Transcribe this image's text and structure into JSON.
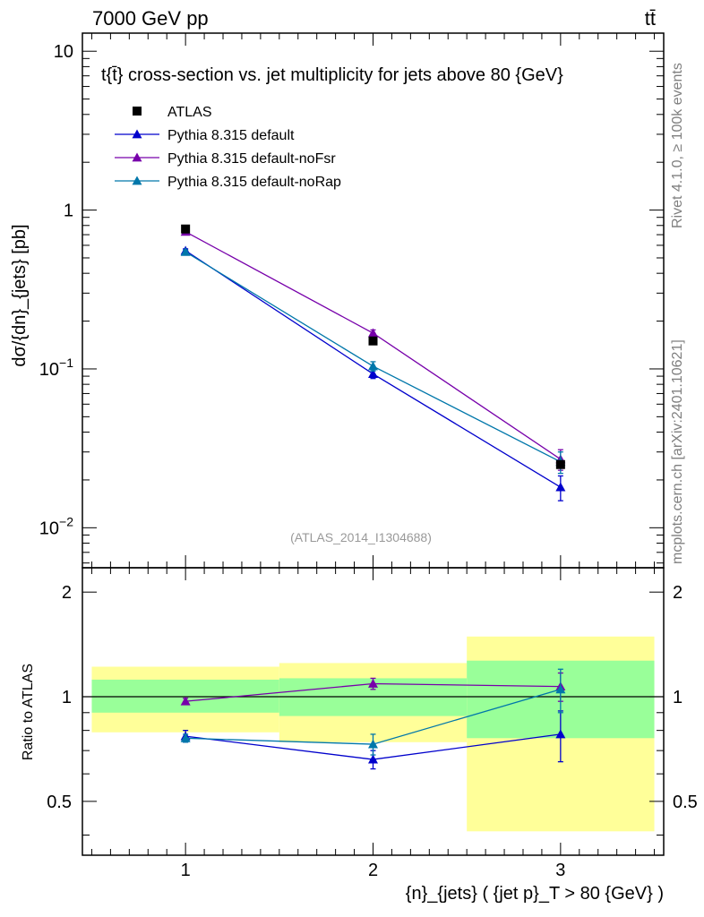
{
  "header": {
    "left": "7000 GeV pp",
    "right": "tt̄"
  },
  "side_labels": {
    "rivet": "Rivet 4.1.0, ≥ 100k events",
    "mcplots": "mcplots.cern.ch [arXiv:2401.10621]"
  },
  "analysis_id": "(ATLAS_2014_I1304688)",
  "chart_data": [
    {
      "type": "line",
      "scale": "log",
      "title": "t{t̄} cross-section vs. jet multiplicity for jets above 80 {GeV}",
      "ylabel": "dσ/{dn}_{jets} [pb]",
      "xlabel": "{n}_{jets} ( {jet p}_T > 80 {GeV} )",
      "xlim": [
        0.45,
        3.55
      ],
      "ylim": [
        0.0056,
        13
      ],
      "x_ticks": [
        "1",
        "2",
        "3"
      ],
      "y_tick_labels": [
        "10",
        "1",
        "10^-1",
        "10^-2"
      ],
      "legend": [
        "ATLAS",
        "Pythia 8.315 default",
        "Pythia 8.315 default-noFsr",
        "Pythia 8.315 default-noRap"
      ],
      "data": {
        "name": "ATLAS",
        "x": [
          1,
          2,
          3
        ],
        "y": [
          0.76,
          0.15,
          0.025
        ],
        "color": "#000000"
      },
      "series": [
        {
          "name": "Pythia 8.315 default",
          "color": "#0000cc",
          "x": [
            1,
            2,
            3
          ],
          "y": [
            0.555,
            0.093,
            0.018
          ],
          "err": [
            0.015,
            0.006,
            0.0032
          ]
        },
        {
          "name": "Pythia 8.315 default-noFsr",
          "color": "#7700aa",
          "x": [
            1,
            2,
            3
          ],
          "y": [
            0.73,
            0.168,
            0.027
          ],
          "err": [
            0.02,
            0.008,
            0.004
          ]
        },
        {
          "name": "Pythia 8.315 default-noRap",
          "color": "#0077aa",
          "x": [
            1,
            2,
            3
          ],
          "y": [
            0.545,
            0.104,
            0.026
          ],
          "err": [
            0.015,
            0.007,
            0.004
          ]
        }
      ]
    },
    {
      "type": "line",
      "title": "",
      "ylabel": "Ratio to ATLAS",
      "xlabel": "{n}_{jets} ( {jet p}_T > 80 {GeV} )",
      "xlim": [
        0.45,
        3.55
      ],
      "ylim": [
        0.35,
        2.35
      ],
      "y_ticks": [
        0.5,
        1,
        2
      ],
      "y_tick_labels": [
        "0.5",
        "1",
        "2"
      ],
      "bands": [
        {
          "x": [
            0.5,
            1.5
          ],
          "inner": [
            0.9,
            1.12
          ],
          "outer": [
            0.79,
            1.22
          ]
        },
        {
          "x": [
            1.5,
            2.5
          ],
          "inner": [
            0.88,
            1.13
          ],
          "outer": [
            0.74,
            1.25
          ]
        },
        {
          "x": [
            2.5,
            3.5
          ],
          "inner": [
            0.76,
            1.27
          ],
          "outer": [
            0.41,
            1.49
          ]
        }
      ],
      "band_colors": {
        "inner": "#99ff99",
        "outer": "#ffff99"
      },
      "series": [
        {
          "name": "Pythia 8.315 default",
          "color": "#0000cc",
          "x": [
            1,
            2,
            3
          ],
          "y": [
            0.77,
            0.66,
            0.78
          ],
          "err": [
            0.03,
            0.04,
            0.13
          ]
        },
        {
          "name": "Pythia 8.315 default-noFsr",
          "color": "#7700aa",
          "x": [
            1,
            2,
            3
          ],
          "y": [
            0.97,
            1.09,
            1.07
          ],
          "err": [
            0.02,
            0.04,
            0.1
          ]
        },
        {
          "name": "Pythia 8.315 default-noRap",
          "color": "#0077aa",
          "x": [
            1,
            2,
            3
          ],
          "y": [
            0.76,
            0.73,
            1.05
          ],
          "err": [
            0.02,
            0.05,
            0.15
          ]
        }
      ]
    }
  ]
}
